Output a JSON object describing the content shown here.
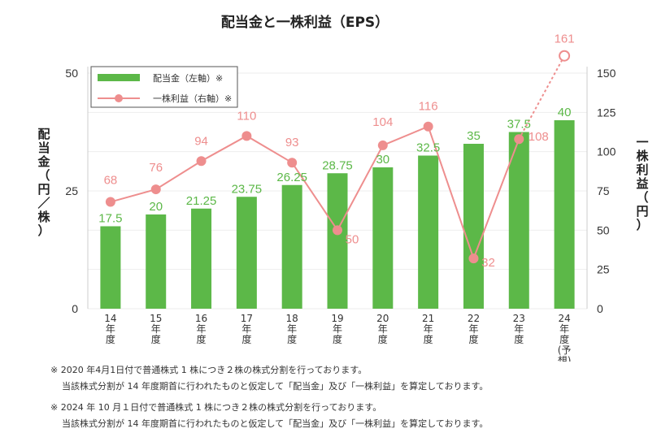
{
  "chart_data": {
    "type": "bar+line",
    "title": "配当金と一株利益（EPS）",
    "categories": [
      [
        "14",
        "年",
        "度"
      ],
      [
        "15",
        "年",
        "度"
      ],
      [
        "16",
        "年",
        "度"
      ],
      [
        "17",
        "年",
        "度"
      ],
      [
        "18",
        "年",
        "度"
      ],
      [
        "19",
        "年",
        "度"
      ],
      [
        "20",
        "年",
        "度"
      ],
      [
        "21",
        "年",
        "度"
      ],
      [
        "22",
        "年",
        "度"
      ],
      [
        "23",
        "年",
        "度"
      ],
      [
        "24",
        "年",
        "度",
        "(予",
        "想)"
      ]
    ],
    "y_left": {
      "label": "配当金（円／株）",
      "ylim": [
        0,
        50
      ],
      "ticks": [
        "0",
        "25",
        "50"
      ]
    },
    "y_right": {
      "label": "一株利益（円）",
      "ylim": [
        0,
        150
      ],
      "ticks": [
        "0",
        "25",
        "50",
        "75",
        "100",
        "125",
        "150"
      ]
    },
    "series": [
      {
        "name": "配当金（左軸）※",
        "type": "bar",
        "axis": "left",
        "color": "#5cb848",
        "values": [
          17.5,
          20,
          21.25,
          23.75,
          26.25,
          28.75,
          30,
          32.5,
          35,
          37.5,
          40
        ],
        "labels": [
          "17.5",
          "20",
          "21.25",
          "23.75",
          "26.25",
          "28.75",
          "30",
          "32.5",
          "35",
          "37.5",
          "40"
        ]
      },
      {
        "name": "一株利益（右軸）※",
        "type": "line",
        "axis": "right",
        "color": "#ee8e8e",
        "values": [
          68,
          76,
          94,
          110,
          93,
          50,
          104,
          116,
          32,
          108,
          161
        ],
        "labels": [
          "68",
          "76",
          "94",
          "110",
          "93",
          "50",
          "104",
          "116",
          "32",
          "108",
          "161"
        ],
        "forecast_from_index": 9
      }
    ],
    "grid": true,
    "legend_position": "top-left"
  },
  "notes": [
    {
      "line1": "※ 2020 年4月1日付で普通株式 1 株につき２株の株式分割を行っております。",
      "line2": "当該株式分割が 14 年度期首に行われたものと仮定して「配当金」及び「一株利益」を算定しております。"
    },
    {
      "line1": "※ 2024 年 10 月１日付で普通株式 1 株につき２株の株式分割を行っております。",
      "line2": "当該株式分割が 14 年度期首に行われたものと仮定して「配当金」及び「一株利益」を算定しております。"
    }
  ]
}
